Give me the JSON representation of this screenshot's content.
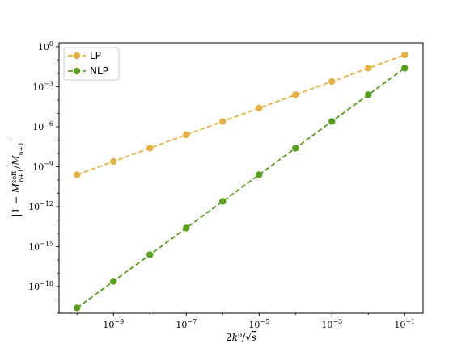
{
  "chart_data": {
    "type": "line",
    "xscale": "log",
    "yscale": "log",
    "xlabel": "2k^0/√s",
    "ylabel": "|1 − M^soft_{n+1}/M_{n+1}|",
    "xlim": [
      3.2e-11,
      0.32
    ],
    "ylim": [
      1e-20,
      2.0
    ],
    "grid": false,
    "legend_position": "upper-left",
    "x_ticks": [
      {
        "value": 1e-09,
        "base": "10",
        "exp": "−9"
      },
      {
        "value": 1e-07,
        "base": "10",
        "exp": "−7"
      },
      {
        "value": 1e-05,
        "base": "10",
        "exp": "−5"
      },
      {
        "value": 0.001,
        "base": "10",
        "exp": "−3"
      },
      {
        "value": 0.1,
        "base": "10",
        "exp": "−1"
      }
    ],
    "y_ticks": [
      {
        "value": 1.0,
        "base": "10",
        "exp": "0"
      },
      {
        "value": 0.001,
        "base": "10",
        "exp": "−3"
      },
      {
        "value": 1e-06,
        "base": "10",
        "exp": "−6"
      },
      {
        "value": 1e-09,
        "base": "10",
        "exp": "−9"
      },
      {
        "value": 1e-12,
        "base": "10",
        "exp": "−12"
      },
      {
        "value": 1e-15,
        "base": "10",
        "exp": "−15"
      },
      {
        "value": 1e-18,
        "base": "10",
        "exp": "−18"
      }
    ],
    "x": [
      1e-10,
      1e-09,
      1e-08,
      1e-07,
      1e-06,
      1e-05,
      0.0001,
      0.001,
      0.01,
      0.1
    ],
    "series": [
      {
        "name": "LP",
        "color": "#e8b040",
        "values": [
          2.5e-10,
          2.5e-09,
          2.5e-08,
          2.5e-07,
          2.5e-06,
          2.5e-05,
          0.00025,
          0.0025,
          0.025,
          0.25
        ]
      },
      {
        "name": "NLP",
        "color": "#56a018",
        "values": [
          2.5e-20,
          2.5e-18,
          2.5e-16,
          2.5e-14,
          2.5e-12,
          2.5e-10,
          2.5e-08,
          2.5e-06,
          0.00025,
          0.025
        ]
      }
    ]
  }
}
